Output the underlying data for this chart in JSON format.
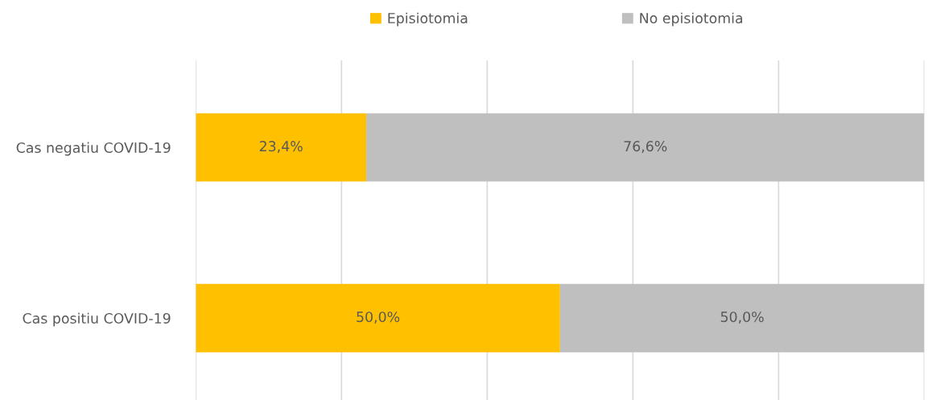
{
  "chart_data": {
    "type": "bar",
    "orientation": "horizontal",
    "stacked": true,
    "categories": [
      "Cas negatiu COVID-19",
      "Cas positiu COVID-19"
    ],
    "series": [
      {
        "name": "Episiotomia",
        "color": "#ffc000",
        "values": [
          23.4,
          50.0
        ],
        "value_labels": [
          "23,4%",
          "50,0%"
        ]
      },
      {
        "name": "No episiotomia",
        "color": "#bfbfbf",
        "values": [
          76.6,
          50.0
        ],
        "value_labels": [
          "76,6%",
          "50,0%"
        ]
      }
    ],
    "xlim": [
      0,
      100
    ],
    "xticks": [
      {
        "value": 0,
        "label": null
      },
      {
        "value": 20,
        "label": null
      },
      {
        "value": 40,
        "label": null
      },
      {
        "value": 60,
        "label": null
      },
      {
        "value": 80,
        "label": null
      },
      {
        "value": 100,
        "label": null
      }
    ],
    "tick_labels": "y",
    "grid": "x",
    "legend": "top"
  }
}
